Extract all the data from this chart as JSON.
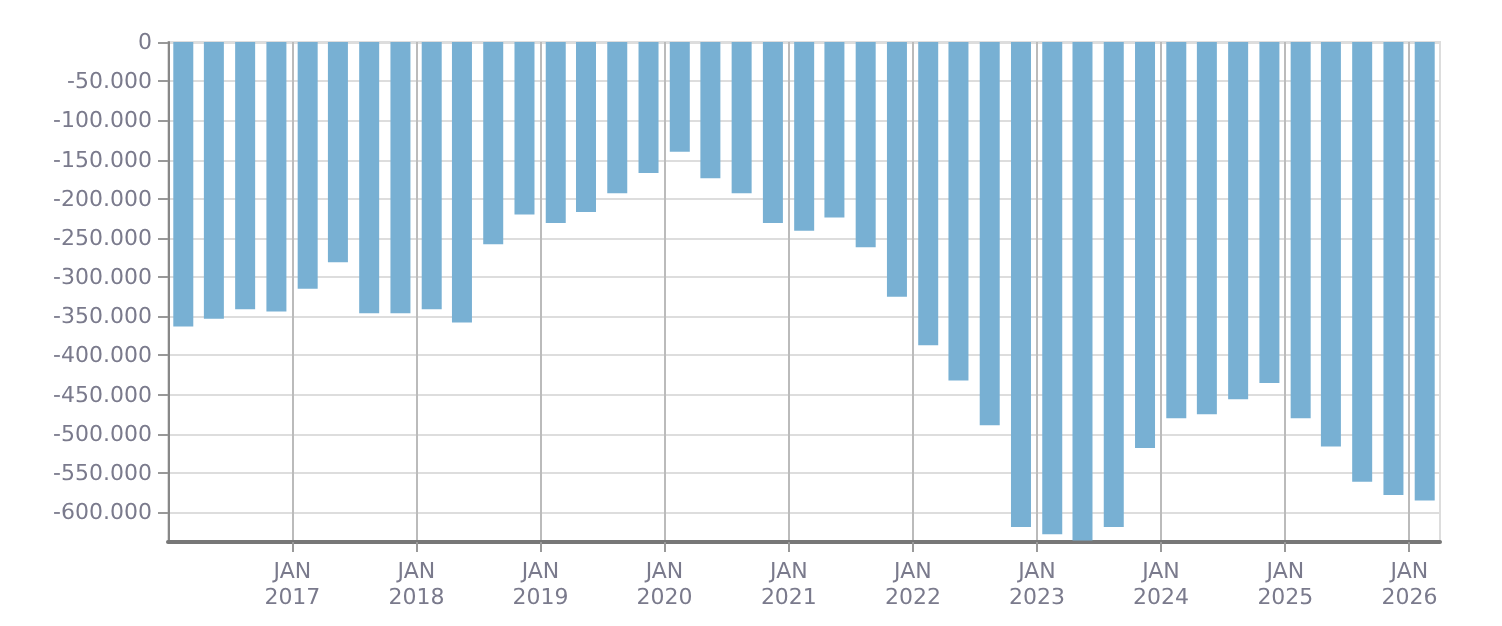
{
  "chart_data": {
    "type": "bar",
    "color": "#78b0d3",
    "x": [
      "2016-02-15",
      "2016-05-15",
      "2016-08-15",
      "2016-11-15",
      "2017-02-15",
      "2017-05-15",
      "2017-08-15",
      "2017-11-15",
      "2018-02-15",
      "2018-05-15",
      "2018-08-15",
      "2018-11-15",
      "2019-02-15",
      "2019-05-15",
      "2019-08-15",
      "2019-11-15",
      "2020-02-15",
      "2020-05-15",
      "2020-08-15",
      "2020-11-15",
      "2021-02-15",
      "2021-05-15",
      "2021-08-15",
      "2021-11-15",
      "2022-02-15",
      "2022-05-15",
      "2022-08-15",
      "2022-11-15",
      "2023-02-15",
      "2023-05-15",
      "2023-08-15",
      "2023-11-15",
      "2024-02-15",
      "2024-05-15",
      "2024-08-15",
      "2024-11-15",
      "2025-02-15",
      "2025-05-15",
      "2025-08-15",
      "2025-11-15",
      "2026-02-15"
    ],
    "values": [
      -363000,
      -353000,
      -341000,
      -344000,
      -315000,
      -281000,
      -346000,
      -346000,
      -341000,
      -358000,
      -258000,
      -220000,
      -231000,
      -217000,
      -193000,
      -167000,
      -140000,
      -174000,
      -193000,
      -231000,
      -241000,
      -224000,
      -262000,
      -325000,
      -387000,
      -432000,
      -489000,
      -619000,
      -628000,
      -636000,
      -619000,
      -518000,
      -480000,
      -475000,
      -456000,
      -435000,
      -480000,
      -516000,
      -561000,
      -578000,
      -585000
    ],
    "xlim": [
      "2016-01-01",
      "2026-04-01"
    ],
    "xticks": [
      {
        "value": "2017-01-01",
        "label": "JAN\n2017"
      },
      {
        "value": "2018-01-01",
        "label": "JAN\n2018"
      },
      {
        "value": "2019-01-01",
        "label": "JAN\n2019"
      },
      {
        "value": "2020-01-01",
        "label": "JAN\n2020"
      },
      {
        "value": "2021-01-01",
        "label": "JAN\n2021"
      },
      {
        "value": "2022-01-01",
        "label": "JAN\n2022"
      },
      {
        "value": "2023-01-01",
        "label": "JAN\n2023"
      },
      {
        "value": "2024-01-01",
        "label": "JAN\n2024"
      },
      {
        "value": "2025-01-01",
        "label": "JAN\n2025"
      },
      {
        "value": "2026-01-01",
        "label": "JAN\n2026"
      }
    ],
    "ylim": [
      -638000,
      0
    ],
    "yticks": [
      0,
      {
        "value": -50000,
        "label": "-50.000"
      },
      {
        "value": -100000,
        "label": "-100.000"
      },
      {
        "value": -150000,
        "label": "-150.000"
      },
      {
        "value": -200000,
        "label": "-200.000"
      },
      {
        "value": -250000,
        "label": "-250.000"
      },
      {
        "value": -300000,
        "label": "-300.000"
      },
      {
        "value": -350000,
        "label": "-350.000"
      },
      {
        "value": -400000,
        "label": "-400.000"
      },
      {
        "value": -450000,
        "label": "-450.000"
      },
      {
        "value": -500000,
        "label": "-500.000"
      },
      {
        "value": -550000,
        "label": "-550.000"
      },
      {
        "value": -600000,
        "label": "-600.000"
      }
    ],
    "grid": true
  }
}
